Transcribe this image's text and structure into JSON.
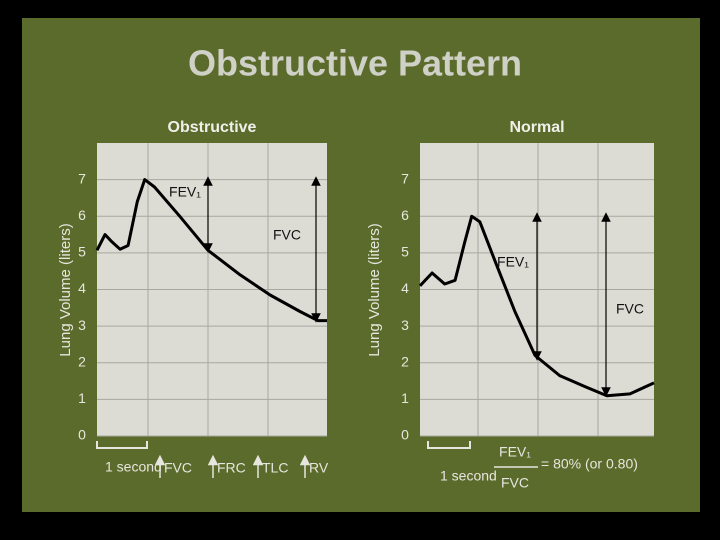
{
  "title": "Obstructive Pattern",
  "chart_data": [
    {
      "type": "line",
      "title": "Obstructive",
      "y_label": "Lung Volume (liters)",
      "x": [
        0,
        0.14,
        0.26,
        0.4,
        0.54,
        0.7,
        0.83,
        1.0,
        1.44,
        1.93,
        2.49,
        3.01,
        3.53,
        3.84,
        4.0
      ],
      "values": [
        5.07,
        5.5,
        5.3,
        5.1,
        5.2,
        6.4,
        7.0,
        6.8,
        6.0,
        5.07,
        4.4,
        3.85,
        3.4,
        3.15,
        3.15
      ],
      "color": "#000000",
      "xlim": [
        0,
        4
      ],
      "ylim": [
        0,
        8
      ],
      "yticks": [
        0,
        1,
        2,
        3,
        4,
        5,
        6,
        7
      ],
      "grid": true,
      "annotations": [
        "FEV₁",
        "FVC"
      ],
      "x_note": "1 second",
      "changes": [
        "FVC",
        "FRC",
        "TLC",
        "RV"
      ]
    },
    {
      "type": "line",
      "title": "Normal",
      "y_label": "Lung Volume (liters)",
      "x": [
        0,
        0.21,
        0.43,
        0.61,
        0.78,
        0.9,
        1.04,
        1.3,
        1.65,
        2.0,
        2.43,
        2.87,
        3.25,
        3.65,
        4.07
      ],
      "values": [
        4.1,
        4.45,
        4.15,
        4.25,
        5.3,
        6.0,
        5.85,
        4.8,
        3.4,
        2.2,
        1.65,
        1.35,
        1.1,
        1.15,
        1.45
      ],
      "color": "#000000",
      "xlim": [
        0,
        4.07
      ],
      "ylim": [
        0,
        8
      ],
      "yticks": [
        0,
        1,
        2,
        3,
        4,
        5,
        6,
        7
      ],
      "grid": true,
      "annotations": [
        "FEV₁",
        "FVC"
      ],
      "x_note": "1 second",
      "ratio": {
        "numerator": "FEV₁",
        "denominator": "FVC",
        "result": "= 80% (or 0.80)"
      }
    }
  ]
}
